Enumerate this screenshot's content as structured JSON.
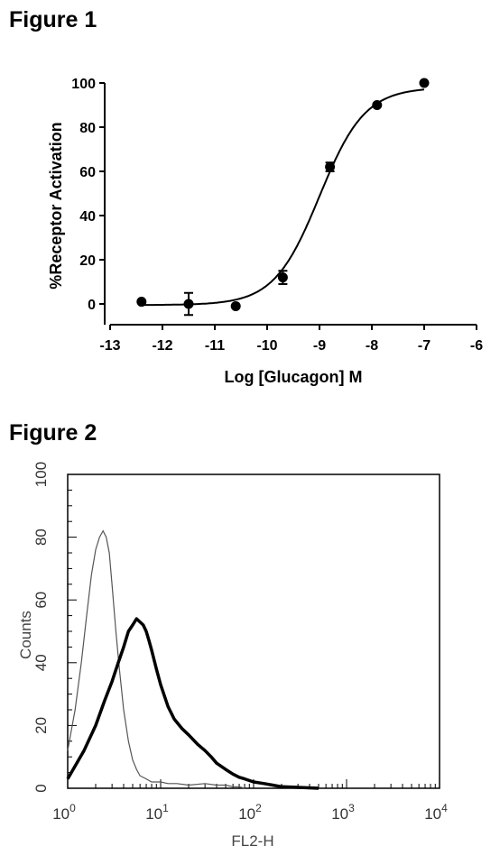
{
  "figure1": {
    "heading": "Figure 1"
  },
  "figure2": {
    "heading": "Figure 2"
  },
  "chart_data": [
    {
      "type": "scatter",
      "title": "",
      "xlabel": "Log [Glucagon] M",
      "ylabel": "%Receptor Activation",
      "xlim": [
        -13,
        -6
      ],
      "ylim": [
        0,
        100
      ],
      "xticks": [
        "-13",
        "-12",
        "-11",
        "-10",
        "-9",
        "-8",
        "-7",
        "-6"
      ],
      "yticks": [
        "0",
        "20",
        "40",
        "60",
        "80",
        "100"
      ],
      "grid": false,
      "series": [
        {
          "points": [
            {
              "x": -12.4,
              "y": 1,
              "err": 0
            },
            {
              "x": -11.5,
              "y": 0,
              "err": 5
            },
            {
              "x": -10.6,
              "y": -1,
              "err": 0
            },
            {
              "x": -9.7,
              "y": 12,
              "err": 3
            },
            {
              "x": -8.8,
              "y": 62,
              "err": 2
            },
            {
              "x": -7.9,
              "y": 90,
              "err": 0
            },
            {
              "x": -7.0,
              "y": 100,
              "err": 0
            }
          ],
          "fit": {
            "model": "sigmoid",
            "bottom": -0.5,
            "top": 98,
            "logEC50": -9.0,
            "hill": 1.0
          }
        }
      ]
    },
    {
      "type": "line",
      "title": "",
      "xlabel": "FL2-H",
      "ylabel": "Counts",
      "xscale": "log",
      "xlim": [
        1,
        10000
      ],
      "ylim": [
        0,
        100
      ],
      "xticks": [
        {
          "base": "10",
          "exp": "0"
        },
        {
          "base": "10",
          "exp": "1"
        },
        {
          "base": "10",
          "exp": "2"
        },
        {
          "base": "10",
          "exp": "3"
        },
        {
          "base": "10",
          "exp": "4"
        }
      ],
      "yticks": [
        "0",
        "20",
        "40",
        "60",
        "80",
        "100"
      ],
      "grid": false,
      "series": [
        {
          "style": "thin",
          "x": [
            1,
            1.2,
            1.4,
            1.6,
            1.8,
            2.0,
            2.2,
            2.4,
            2.6,
            2.8,
            3.0,
            3.3,
            3.6,
            4.0,
            4.5,
            5.0,
            5.5,
            6.0,
            7.0,
            8.0,
            10,
            12,
            15,
            20,
            30,
            40,
            50,
            60,
            70,
            80
          ],
          "y": [
            12,
            25,
            40,
            55,
            68,
            76,
            80,
            82,
            80,
            75,
            65,
            50,
            38,
            25,
            15,
            9,
            6,
            4,
            3,
            2,
            2,
            1.5,
            1.5,
            1,
            1.5,
            1,
            1,
            0.5,
            0.5,
            0
          ]
        },
        {
          "style": "thick",
          "x": [
            1,
            1.5,
            2,
            2.5,
            3,
            3.5,
            4,
            4.5,
            5,
            5.5,
            6,
            6.5,
            7,
            7.5,
            8,
            9,
            10,
            12,
            14,
            17,
            20,
            25,
            30,
            35,
            40,
            50,
            60,
            70,
            80,
            100,
            130,
            160,
            200,
            300,
            500
          ],
          "y": [
            3,
            12,
            20,
            28,
            34,
            40,
            45,
            50,
            52,
            54,
            53,
            52,
            50,
            47,
            44,
            38,
            33,
            26,
            22,
            19,
            17,
            14,
            12,
            10,
            8,
            6,
            4.5,
            3.5,
            3,
            2,
            1.5,
            1,
            0.5,
            0.3,
            0
          ]
        }
      ]
    }
  ]
}
